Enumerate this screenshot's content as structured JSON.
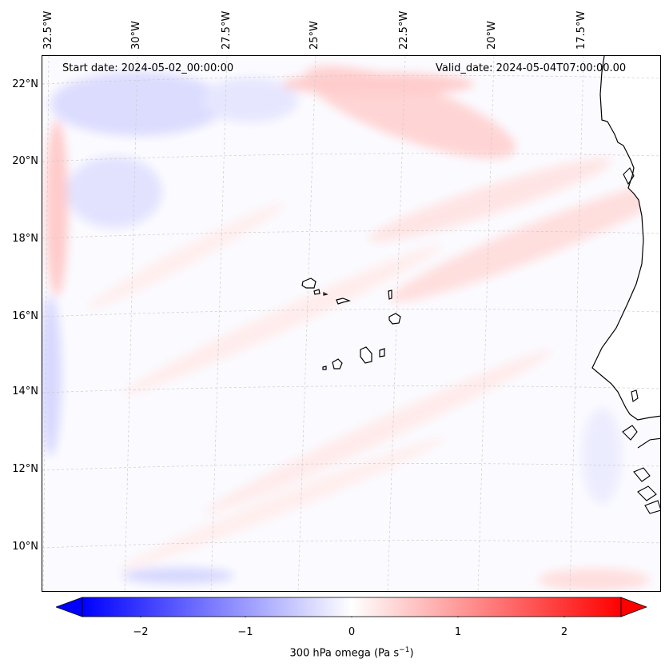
{
  "map": {
    "start_date_text": "Start date: 2024-05-02_00:00:00",
    "valid_date_text": "Valid_date: 2024-05-04T07:00:00.00",
    "lon_labels": [
      "32.5°W",
      "30°W",
      "27.5°W",
      "25°W",
      "22.5°W",
      "20°W",
      "17.5°W"
    ],
    "lat_labels": [
      "22°N",
      "20°N",
      "18°N",
      "16°N",
      "14°N",
      "12°N",
      "10°N"
    ],
    "land_color": "#ffffff",
    "coast_color": "#000000",
    "grid_color": "#c8c8c8"
  },
  "colorbar": {
    "ticks": [
      "−2",
      "−1",
      "0",
      "1",
      "2"
    ],
    "label_prefix": "300 hPa omega (Pa s",
    "label_exp": "−1",
    "label_suffix": ")",
    "min": -2.7,
    "max": 2.7,
    "low_color": "#0000ff",
    "mid_color": "#ffffff",
    "high_color": "#ff0000"
  }
}
